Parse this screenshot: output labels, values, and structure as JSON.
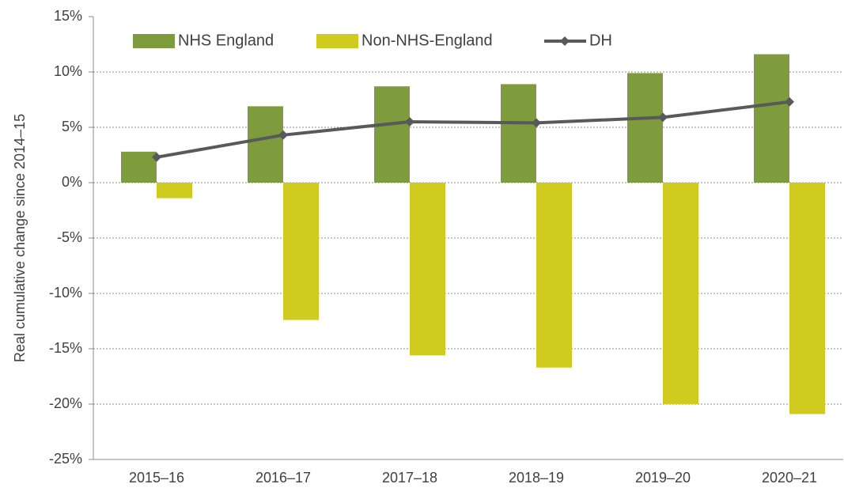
{
  "chart_data": {
    "type": "bar",
    "y_label": "Real cumulative change since 2014–15",
    "categories": [
      "2015–16",
      "2016–17",
      "2017–18",
      "2018–19",
      "2019–20",
      "2020–21"
    ],
    "series": [
      {
        "name": "NHS England",
        "type": "bar",
        "color": "#7e9b3d",
        "values": [
          2.8,
          6.9,
          8.7,
          8.9,
          9.9,
          11.6
        ]
      },
      {
        "name": "Non-NHS-England",
        "type": "bar",
        "color": "#cfcc1f",
        "values": [
          -1.4,
          -12.4,
          -15.6,
          -16.7,
          -20.0,
          -20.9
        ]
      },
      {
        "name": "DH",
        "type": "line",
        "color": "#595959",
        "values": [
          2.3,
          4.3,
          5.5,
          5.4,
          5.9,
          7.3
        ]
      }
    ],
    "ylim": [
      -25,
      15
    ],
    "yticks": [
      {
        "value": 15,
        "label": "15%"
      },
      {
        "value": 10,
        "label": "10%"
      },
      {
        "value": 5,
        "label": "5%"
      },
      {
        "value": 0,
        "label": "0%"
      },
      {
        "value": -5,
        "label": "-5%"
      },
      {
        "value": -10,
        "label": "-10%"
      },
      {
        "value": -15,
        "label": "-15%"
      },
      {
        "value": -20,
        "label": "-20%"
      },
      {
        "value": -25,
        "label": "-25%"
      }
    ],
    "grid": true,
    "legend": "top"
  }
}
